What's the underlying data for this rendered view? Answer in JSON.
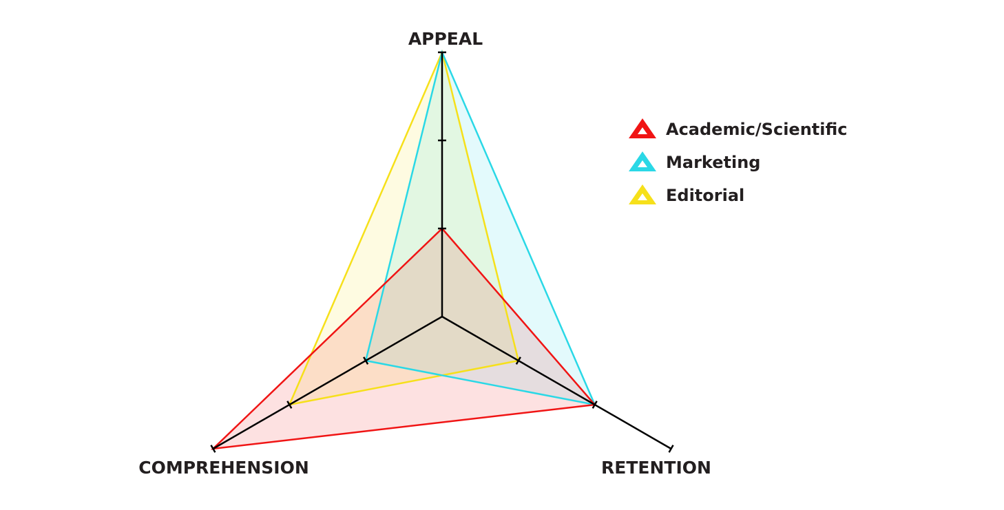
{
  "chart_data": {
    "type": "radar",
    "categories": [
      "APPEAL",
      "RETENTION",
      "COMPREHENSION"
    ],
    "rlim": [
      0,
      3
    ],
    "rticks": [
      1,
      2,
      3
    ],
    "legend": "right",
    "series": [
      {
        "name": "Academic/Scientific",
        "color": "#f01414",
        "values": [
          1,
          2,
          3
        ]
      },
      {
        "name": "Marketing",
        "color": "#2ad8e6",
        "values": [
          3,
          2,
          1
        ]
      },
      {
        "name": "Editorial",
        "color": "#f6e01a",
        "values": [
          3,
          1,
          2
        ]
      }
    ]
  }
}
